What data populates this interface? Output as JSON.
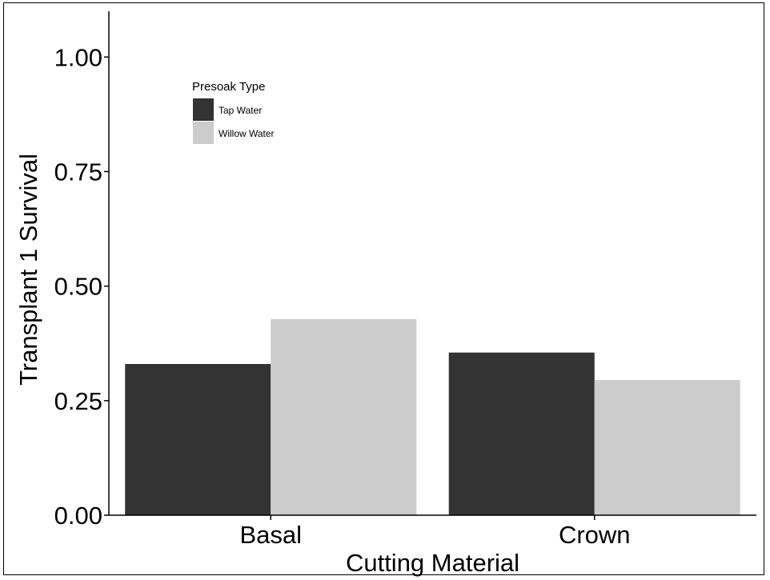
{
  "chart_data": {
    "type": "bar",
    "title": "",
    "xlabel": "Cutting Material",
    "ylabel": "Transplant 1 Survival",
    "categories": [
      "Basal",
      "Crown"
    ],
    "series": [
      {
        "name": "Tap Water",
        "color": "#333333",
        "values": [
          0.33,
          0.355
        ]
      },
      {
        "name": "Willow Water",
        "color": "#cccccc",
        "values": [
          0.428,
          0.295
        ]
      }
    ],
    "ylim": [
      0,
      1.1
    ],
    "yticks": [
      0,
      0.25,
      0.5,
      0.75,
      1.0
    ],
    "ytick_labels": [
      "0.00",
      "0.25",
      "0.50",
      "0.75",
      "1.00"
    ],
    "grid": false,
    "legend": {
      "title": "Presoak Type",
      "position": "top-left"
    }
  }
}
